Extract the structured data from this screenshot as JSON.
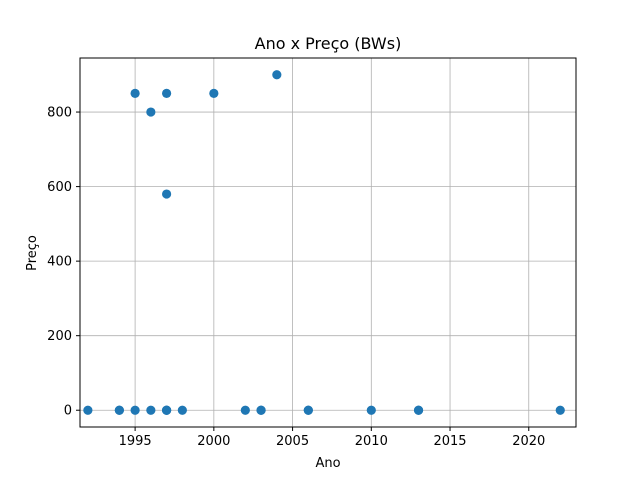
{
  "chart_data": {
    "type": "scatter",
    "title": "Ano x Preço (BWs)",
    "xlabel": "Ano",
    "ylabel": "Preço",
    "xlim": [
      1991.5,
      2023.0
    ],
    "ylim": [
      -45,
      945
    ],
    "xticks": [
      1995,
      2000,
      2005,
      2010,
      2015,
      2020
    ],
    "yticks": [
      0,
      200,
      400,
      600,
      800
    ],
    "grid": true,
    "marker_color": "#1f77b4",
    "series": [
      {
        "x": [
          1995,
          1997,
          2004,
          2000,
          1996,
          1997,
          1992,
          1994,
          1994,
          1995,
          1996,
          1997,
          1997,
          1997,
          1998,
          2002,
          2003,
          2003,
          2006,
          2006,
          2010,
          2013,
          2013,
          2022
        ],
        "y": [
          850,
          850,
          900,
          850,
          800,
          580,
          0,
          0,
          0,
          0,
          0,
          0,
          0,
          0,
          0,
          0,
          0,
          0,
          0,
          0,
          0,
          0,
          0,
          0
        ]
      }
    ]
  }
}
